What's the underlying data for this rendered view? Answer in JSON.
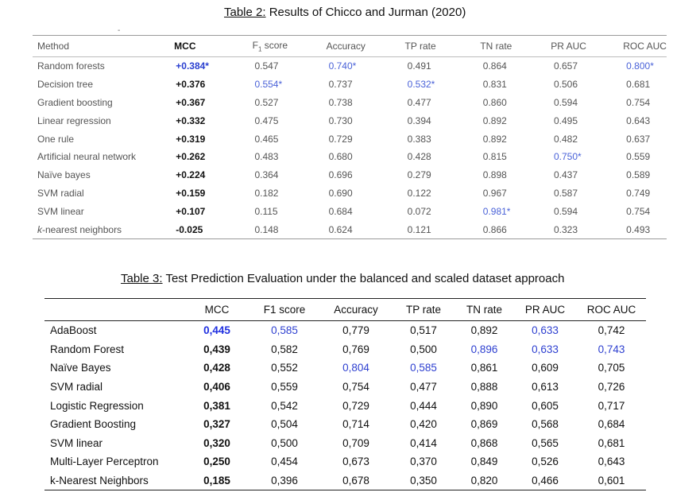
{
  "colors": {
    "highlight": "#2d3fd0",
    "text": "#222222"
  },
  "table2": {
    "title_label": "Table 2:",
    "title_text": " Results of Chicco and Jurman (2020)",
    "header": [
      "Method",
      "MCC",
      "F1 score",
      "Accuracy",
      "TP rate",
      "TN rate",
      "PR AUC",
      "ROC AUC"
    ],
    "rows": [
      [
        "Random forests",
        "+0.384*",
        "0.547",
        "0.740*",
        "0.491",
        "0.864",
        "0.657",
        "0.800*"
      ],
      [
        "Decision tree",
        "+0.376",
        "0.554*",
        "0.737",
        "0.532*",
        "0.831",
        "0.506",
        "0.681"
      ],
      [
        "Gradient boosting",
        "+0.367",
        "0.527",
        "0.738",
        "0.477",
        "0.860",
        "0.594",
        "0.754"
      ],
      [
        "Linear regression",
        "+0.332",
        "0.475",
        "0.730",
        "0.394",
        "0.892",
        "0.495",
        "0.643"
      ],
      [
        "One rule",
        "+0.319",
        "0.465",
        "0.729",
        "0.383",
        "0.892",
        "0.482",
        "0.637"
      ],
      [
        "Artificial neural network",
        "+0.262",
        "0.483",
        "0.680",
        "0.428",
        "0.815",
        "0.750*",
        "0.559"
      ],
      [
        "Naïve bayes",
        "+0.224",
        "0.364",
        "0.696",
        "0.279",
        "0.898",
        "0.437",
        "0.589"
      ],
      [
        "SVM radial",
        "+0.159",
        "0.182",
        "0.690",
        "0.122",
        "0.967",
        "0.587",
        "0.749"
      ],
      [
        "SVM linear",
        "+0.107",
        "0.115",
        "0.684",
        "0.072",
        "0.981*",
        "0.594",
        "0.754"
      ],
      [
        "k-nearest neighbors",
        "-0.025",
        "0.148",
        "0.624",
        "0.121",
        "0.866",
        "0.323",
        "0.493"
      ]
    ],
    "highlights": [
      [
        0,
        1
      ],
      [
        0,
        3
      ],
      [
        0,
        7
      ],
      [
        1,
        2
      ],
      [
        1,
        4
      ],
      [
        5,
        6
      ],
      [
        8,
        5
      ]
    ]
  },
  "table3": {
    "title_label": "Table 3:",
    "title_text": " Test Prediction Evaluation under the balanced and scaled dataset approach",
    "header": [
      "",
      "MCC",
      "F1 score",
      "Accuracy",
      "TP rate",
      "TN rate",
      "PR AUC",
      "ROC AUC"
    ],
    "rows": [
      [
        "AdaBoost",
        "0,445",
        "0,585",
        "0,779",
        "0,517",
        "0,892",
        "0,633",
        "0,742"
      ],
      [
        "Random Forest",
        "0,439",
        "0,582",
        "0,769",
        "0,500",
        "0,896",
        "0,633",
        "0,743"
      ],
      [
        "Naïve Bayes",
        "0,428",
        "0,552",
        "0,804",
        "0,585",
        "0,861",
        "0,609",
        "0,705"
      ],
      [
        "SVM radial",
        "0,406",
        "0,559",
        "0,754",
        "0,477",
        "0,888",
        "0,613",
        "0,726"
      ],
      [
        "Logistic Regression",
        "0,381",
        "0,542",
        "0,729",
        "0,444",
        "0,890",
        "0,605",
        "0,717"
      ],
      [
        "Gradient Boosting",
        "0,327",
        "0,504",
        "0,714",
        "0,420",
        "0,869",
        "0,568",
        "0,684"
      ],
      [
        "SVM linear",
        "0,320",
        "0,500",
        "0,709",
        "0,414",
        "0,868",
        "0,565",
        "0,681"
      ],
      [
        "Multi-Layer Perceptron",
        "0,250",
        "0,454",
        "0,673",
        "0,370",
        "0,849",
        "0,526",
        "0,643"
      ],
      [
        "k-Nearest Neighbors",
        "0,185",
        "0,396",
        "0,678",
        "0,350",
        "0,820",
        "0,466",
        "0,601"
      ]
    ],
    "highlights": [
      [
        0,
        1
      ],
      [
        0,
        2
      ],
      [
        0,
        6
      ],
      [
        1,
        5
      ],
      [
        1,
        6
      ],
      [
        1,
        7
      ],
      [
        2,
        3
      ],
      [
        2,
        4
      ]
    ]
  }
}
